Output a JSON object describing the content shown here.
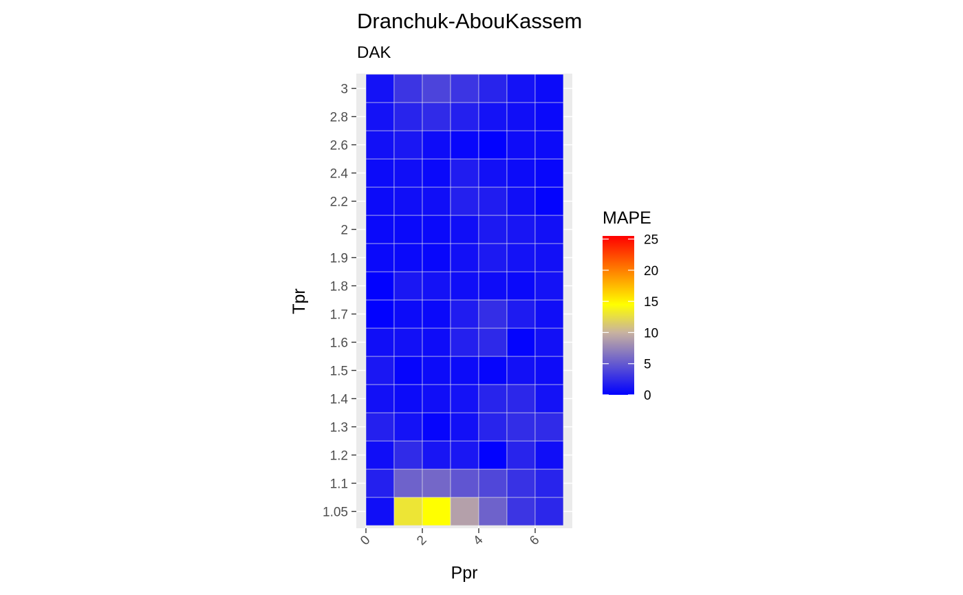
{
  "chart_data": {
    "type": "heatmap",
    "title": "Dranchuk-AbouKassem",
    "subtitle": "DAK",
    "xlabel": "Ppr",
    "ylabel": "Tpr",
    "x_ticks": [
      "0",
      "2",
      "4",
      "6"
    ],
    "x_tick_values": [
      0,
      2,
      4,
      6
    ],
    "x": [
      0.5,
      1.5,
      2.5,
      3.5,
      4.5,
      5.5,
      6.5
    ],
    "xlim": [
      0,
      7
    ],
    "y": [
      "1.05",
      "1.1",
      "1.2",
      "1.3",
      "1.4",
      "1.5",
      "1.6",
      "1.7",
      "1.8",
      "1.9",
      "2",
      "2.2",
      "2.4",
      "2.6",
      "2.8",
      "3"
    ],
    "values": [
      [
        0.8,
        13.0,
        14.5,
        9.0,
        5.5,
        3.0,
        2.2
      ],
      [
        1.8,
        5.5,
        5.8,
        4.8,
        4.0,
        2.8,
        2.0
      ],
      [
        0.8,
        2.4,
        1.2,
        1.3,
        0.1,
        2.0,
        0.8
      ],
      [
        1.8,
        1.0,
        0.3,
        0.9,
        2.0,
        2.5,
        2.4
      ],
      [
        0.9,
        0.6,
        0.8,
        1.0,
        2.0,
        2.2,
        1.0
      ],
      [
        1.3,
        0.3,
        0.6,
        0.6,
        0.3,
        0.9,
        0.7
      ],
      [
        0.8,
        0.9,
        0.7,
        1.8,
        2.3,
        0.2,
        0.9
      ],
      [
        0.1,
        0.6,
        0.5,
        1.6,
        2.6,
        1.5,
        0.8
      ],
      [
        0.1,
        1.3,
        1.0,
        0.8,
        0.7,
        0.5,
        1.0
      ],
      [
        0.5,
        0.5,
        0.4,
        0.9,
        1.4,
        1.0,
        0.9
      ],
      [
        0.5,
        0.5,
        0.5,
        0.8,
        1.4,
        1.2,
        0.9
      ],
      [
        0.6,
        0.8,
        0.8,
        1.8,
        1.6,
        0.8,
        0.2
      ],
      [
        0.6,
        0.8,
        0.5,
        1.6,
        0.9,
        0.6,
        0.4
      ],
      [
        0.9,
        1.3,
        0.7,
        0.4,
        0.1,
        0.7,
        0.6
      ],
      [
        1.0,
        2.0,
        2.4,
        1.8,
        1.0,
        0.8,
        0.5
      ],
      [
        1.0,
        3.0,
        3.8,
        3.0,
        2.0,
        1.0,
        0.6
      ]
    ],
    "legend": {
      "title": "MAPE",
      "position": "right",
      "ticks": [
        "0",
        "5",
        "10",
        "15",
        "20",
        "25"
      ],
      "tick_values": [
        0,
        5,
        10,
        15,
        20,
        25
      ],
      "range": [
        0,
        25.5
      ],
      "colors": [
        "#0000ff",
        "#c8b2a0",
        "#ffff00",
        "#ff0000"
      ],
      "color_stops": [
        0,
        10,
        14.5,
        25.5
      ]
    },
    "panel_background": "#ebebeb",
    "grid": true
  }
}
